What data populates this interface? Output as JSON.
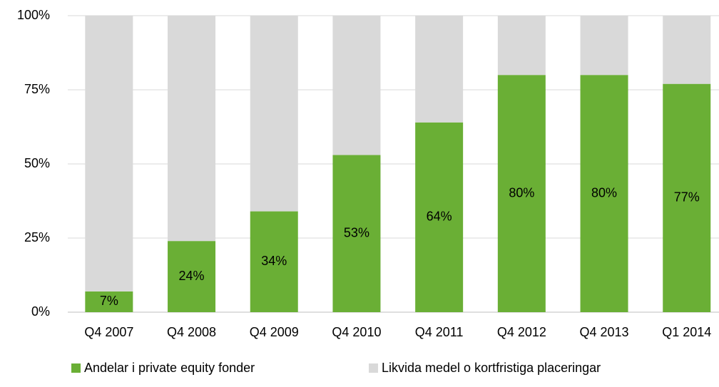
{
  "chart_data": {
    "type": "stacked_bar",
    "categories": [
      "Q4 2007",
      "Q4 2008",
      "Q4 2009",
      "Q4 2010",
      "Q4 2011",
      "Q4 2012",
      "Q4 2013",
      "Q1 2014"
    ],
    "series": [
      {
        "name": "Andelar i private equity fonder",
        "color": "#6aaf35",
        "values": [
          7,
          24,
          34,
          53,
          64,
          80,
          80,
          77
        ],
        "value_labels": [
          "7%",
          "24%",
          "34%",
          "53%",
          "64%",
          "80%",
          "80%",
          "77%"
        ]
      },
      {
        "name": "Likvida medel o kortfristiga placeringar",
        "color": "#d9d9d9",
        "values": [
          93,
          76,
          66,
          47,
          36,
          20,
          20,
          23
        ]
      }
    ],
    "ylim": [
      0,
      100
    ],
    "yticks": [
      {
        "value": 0,
        "label": "0%"
      },
      {
        "value": 25,
        "label": "25%"
      },
      {
        "value": 50,
        "label": "50%"
      },
      {
        "value": 75,
        "label": "75%"
      },
      {
        "value": 100,
        "label": "100%"
      }
    ],
    "grid": true,
    "legend": "bottom"
  }
}
